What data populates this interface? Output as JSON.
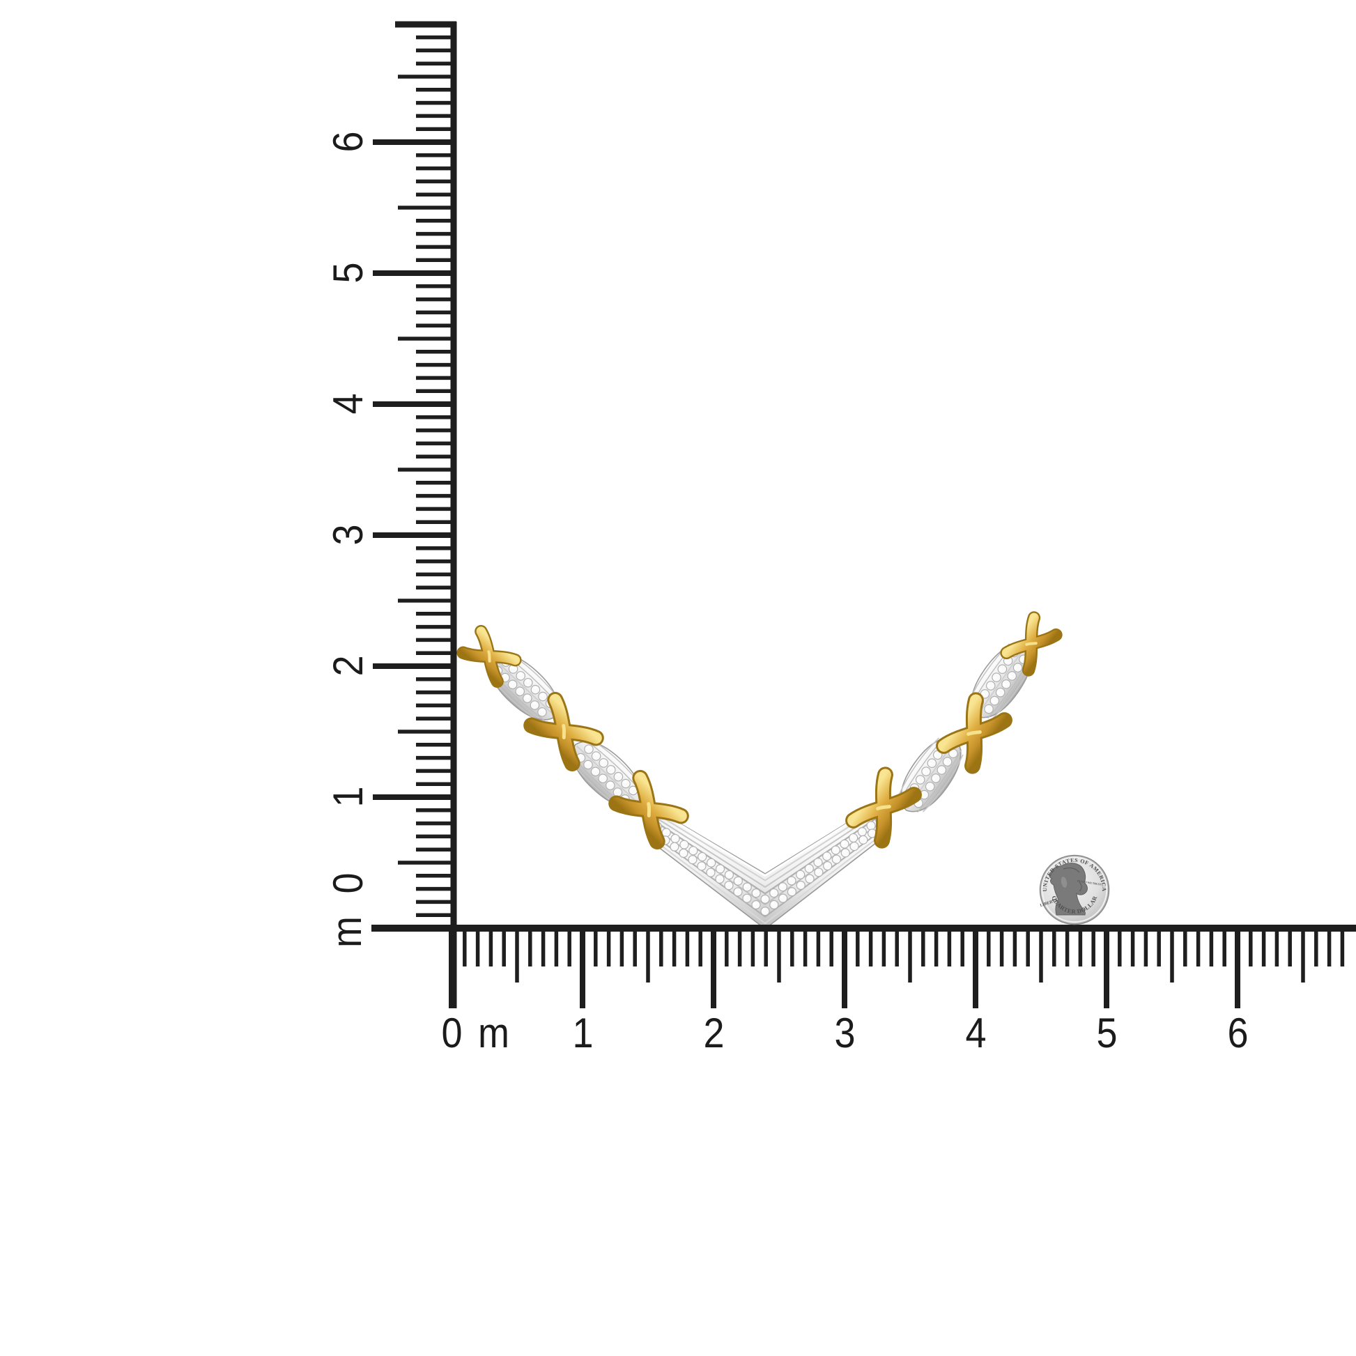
{
  "scene": {
    "background_color": "#ffffff"
  },
  "rulers": {
    "tick_color": "#1e1e1e",
    "vertical": {
      "labels": [
        "6",
        "5",
        "4",
        "3",
        "2",
        "1",
        "0",
        "m"
      ]
    },
    "horizontal": {
      "labels": [
        "0",
        "m",
        "1",
        "2",
        "3",
        "4",
        "5",
        "6"
      ]
    }
  },
  "necklace": {
    "gold_color": "#d9a93f",
    "silver_color": "#d9d9d9",
    "diamond_color": "#fafafa"
  },
  "coin": {
    "top_text": "UNITED STATES OF AMERICA",
    "left_text": "LIBERTY",
    "right_text": "IN GOD WE TRUST",
    "bottom_text": "QUARTER DOLLAR"
  }
}
